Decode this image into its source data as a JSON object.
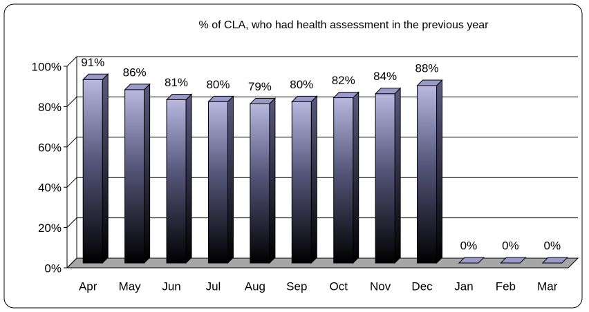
{
  "chart_data": {
    "type": "bar3d",
    "title": "% of CLA, who had health assessment in the previous year",
    "categories": [
      "Apr",
      "May",
      "Jun",
      "Jul",
      "Aug",
      "Sep",
      "Oct",
      "Nov",
      "Dec",
      "Jan",
      "Feb",
      "Mar"
    ],
    "values": [
      91,
      86,
      81,
      80,
      79,
      80,
      82,
      84,
      88,
      0,
      0,
      0
    ],
    "value_labels": [
      "91%",
      "86%",
      "81%",
      "80%",
      "79%",
      "80%",
      "82%",
      "84%",
      "88%",
      "0%",
      "0%",
      "0%"
    ],
    "color": "#9a9ac8",
    "ylim": [
      0,
      100
    ],
    "yticks": [
      {
        "value": 0,
        "label": "0%"
      },
      {
        "value": 20,
        "label": "20%"
      },
      {
        "value": 40,
        "label": "40%"
      },
      {
        "value": 60,
        "label": "60%"
      },
      {
        "value": 80,
        "label": "80%"
      },
      {
        "value": 100,
        "label": "100%"
      }
    ],
    "grid": true
  }
}
